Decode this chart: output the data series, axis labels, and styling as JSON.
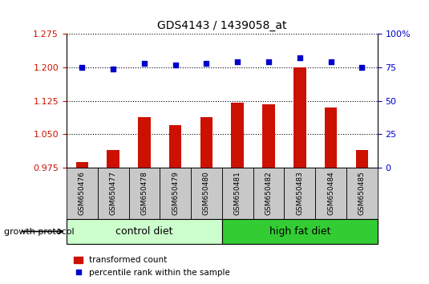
{
  "title": "GDS4143 / 1439058_at",
  "samples": [
    "GSM650476",
    "GSM650477",
    "GSM650478",
    "GSM650479",
    "GSM650480",
    "GSM650481",
    "GSM650482",
    "GSM650483",
    "GSM650484",
    "GSM650485"
  ],
  "transformed_count": [
    0.988,
    1.015,
    1.088,
    1.07,
    1.088,
    1.12,
    1.118,
    1.2,
    1.11,
    1.015
  ],
  "percentile_rank": [
    75,
    74,
    78,
    77,
    78,
    79,
    79,
    82,
    79,
    75
  ],
  "ylim_left": [
    0.975,
    1.275
  ],
  "ylim_right": [
    0,
    100
  ],
  "yticks_left": [
    0.975,
    1.05,
    1.125,
    1.2,
    1.275
  ],
  "yticks_right": [
    0,
    25,
    50,
    75,
    100
  ],
  "bar_color": "#cc1100",
  "dot_color": "#0000cc",
  "control_label": "control diet",
  "high_fat_label": "high fat diet",
  "protocol_label": "growth protocol",
  "legend_bar_label": "transformed count",
  "legend_dot_label": "percentile rank within the sample",
  "tick_bg_color": "#c8c8c8",
  "control_bg_color": "#ccffcc",
  "high_fat_bg_color": "#33cc33",
  "right_axis_color": "#0000cc",
  "left_axis_color": "#cc1100",
  "n_control": 5,
  "n_samples": 10,
  "bar_width": 0.4
}
